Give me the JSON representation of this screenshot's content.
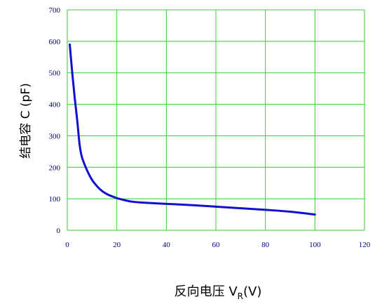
{
  "chart_data": {
    "type": "line",
    "title": "",
    "xlabel_prefix": "反向电压 V",
    "xlabel_sub": "R",
    "xlabel_suffix": "(V)",
    "ylabel": "结电容 C (pF)",
    "xlim": [
      0,
      120
    ],
    "ylim": [
      0,
      700
    ],
    "xticks": [
      0,
      20,
      40,
      60,
      80,
      100,
      120
    ],
    "yticks": [
      0,
      100,
      200,
      300,
      400,
      500,
      600,
      700
    ],
    "x_tick_labels": [
      "0",
      "20",
      "40",
      "60",
      "80",
      "100",
      "120"
    ],
    "y_tick_labels": [
      "0",
      "100",
      "200",
      "300",
      "400",
      "500",
      "600",
      "700"
    ],
    "grid": true,
    "colors": {
      "line": "#1010d0",
      "grid": "#33cc33",
      "tick_text": "#000080"
    },
    "series": [
      {
        "x": [
          1,
          2,
          3,
          4,
          5,
          6,
          8,
          10,
          12,
          14,
          16,
          18,
          20,
          22,
          24,
          26,
          30,
          40,
          50,
          60,
          70,
          80,
          90,
          100
        ],
        "y": [
          590,
          500,
          420,
          350,
          270,
          230,
          190,
          160,
          140,
          125,
          115,
          108,
          102,
          98,
          94,
          91,
          88,
          84,
          80,
          75,
          70,
          65,
          59,
          50
        ]
      }
    ]
  }
}
